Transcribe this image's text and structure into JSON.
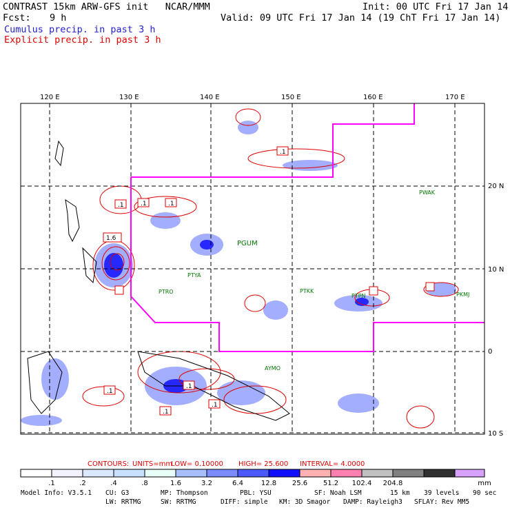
{
  "header": {
    "title": "CONTRAST 15km ARW-GFS init   NCAR/MMM",
    "init": "Init: 00 UTC Fri 17 Jan 14",
    "fcst_label": "Fcst:",
    "fcst_value": "9 h",
    "valid": "Valid: 09 UTC Fri 17 Jan 14 (19 ChT Fri 17 Jan 14)",
    "legend_cumulus": "Cumulus precip. in past 3 h",
    "legend_explicit": "Explicit precip. in past 3 h"
  },
  "colors": {
    "cumulus": "#1f1fd0",
    "explicit": "#e00000",
    "boundary": "#ff00ff",
    "station": "#007700",
    "grid": "#000000"
  },
  "map": {
    "longitude_labels": [
      "120 E",
      "130 E",
      "140 E",
      "150 E",
      "160 E",
      "170 E"
    ],
    "latitude_labels": [
      "20 N",
      "10 N",
      "0",
      "10 S"
    ],
    "stations": [
      "PGUM",
      "PTYA",
      "PTRO",
      "PTKK",
      "PTPN",
      "PKMJ",
      "PWAK",
      "AYMO"
    ],
    "contour_labels": [
      ".1",
      ".1",
      ".1",
      ".1",
      "1.6",
      ".1",
      ".1",
      ".1",
      ".1"
    ]
  },
  "contours_line": {
    "contours_label": "CONTOURS:",
    "units": "UNITS=mm",
    "low": "LOW= 0.10000",
    "high": "HIGH= 25.600",
    "interval": "INTERVAL= 4.0000"
  },
  "color_scale": {
    "unit": "mm",
    "values": [
      ".1",
      ".2",
      ".4",
      ".8",
      "1.6",
      "3.2",
      "6.4",
      "12.8",
      "25.6",
      "51.2",
      "102.4",
      "204.8"
    ],
    "colors": [
      "#ffffff",
      "#f2f2ff",
      "#dce8ff",
      "#c7e0ff",
      "#e8fff8",
      "#a8bfff",
      "#7a8cff",
      "#4a5aff",
      "#1010ff",
      "#ffb0b0",
      "#ff80b0",
      "#c0c0c0",
      "#808080",
      "#303030",
      "#d8a0ff"
    ]
  },
  "footer": {
    "model_info": "Model Info: V3.5.1",
    "cu": "CU: G3",
    "mp": "MP: Thompson",
    "pbl": "PBL: YSU",
    "sf": "SF: Noah LSM",
    "res": "15 km",
    "levels": "39 levels",
    "timestep": "90 sec",
    "lw": "LW: RRTMG",
    "sw": "SW: RRTMG",
    "diff": "DIFF: simple",
    "km": "KM: 3D Smagor",
    "damp": "DAMP: Rayleigh3",
    "sflay": "SFLAY: Rev MM5"
  }
}
